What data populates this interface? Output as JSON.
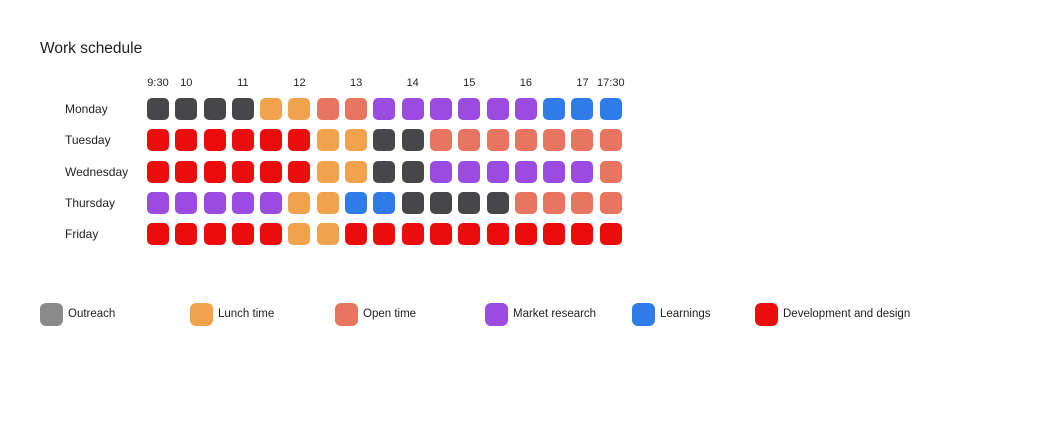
{
  "page": {
    "background": "#ffffff"
  },
  "chart_data": {
    "type": "heatmap",
    "title": "Work schedule",
    "x_axis": {
      "tick_labels": [
        "9:30",
        "10",
        "11",
        "12",
        "13",
        "14",
        "15",
        "16",
        "17",
        "17:30"
      ],
      "tick_slot_index": [
        0,
        1,
        3,
        5,
        7,
        9,
        11,
        13,
        15,
        16
      ],
      "slots_per_row": 17,
      "range": [
        "9:30",
        "17:30"
      ]
    },
    "days": [
      "Monday",
      "Tuesday",
      "Wednesday",
      "Thursday",
      "Friday"
    ],
    "cells": {
      "Monday": [
        "outreach",
        "outreach",
        "outreach",
        "outreach",
        "lunch",
        "lunch",
        "open",
        "open",
        "market",
        "market",
        "market",
        "market",
        "market",
        "market",
        "learnings",
        "learnings",
        "learnings"
      ],
      "Tuesday": [
        "dev",
        "dev",
        "dev",
        "dev",
        "dev",
        "dev",
        "lunch",
        "lunch",
        "outreach",
        "outreach",
        "open",
        "open",
        "open",
        "open",
        "open",
        "open",
        "open"
      ],
      "Wednesday": [
        "dev",
        "dev",
        "dev",
        "dev",
        "dev",
        "dev",
        "lunch",
        "lunch",
        "outreach",
        "outreach",
        "market",
        "market",
        "market",
        "market",
        "market",
        "market",
        "open"
      ],
      "Thursday": [
        "market",
        "market",
        "market",
        "market",
        "market",
        "lunch",
        "lunch",
        "learnings",
        "learnings",
        "outreach",
        "outreach",
        "outreach",
        "outreach",
        "open",
        "open",
        "open",
        "open"
      ],
      "Friday": [
        "dev",
        "dev",
        "dev",
        "dev",
        "dev",
        "lunch",
        "lunch",
        "dev",
        "dev",
        "dev",
        "dev",
        "dev",
        "dev",
        "dev",
        "dev",
        "dev",
        "dev"
      ]
    },
    "activities": {
      "outreach": {
        "label": "Outreach",
        "cell_color": "#47474a",
        "legend_color": "#8a8a8a"
      },
      "lunch": {
        "label": "Lunch time",
        "cell_color": "#f0a24d",
        "legend_color": "#f0a24d"
      },
      "open": {
        "label": "Open time",
        "cell_color": "#e87560",
        "legend_color": "#e87560"
      },
      "market": {
        "label": "Market research",
        "cell_color": "#9b4be0",
        "legend_color": "#9b4be0"
      },
      "learnings": {
        "label": "Learnings",
        "cell_color": "#2f7ce9",
        "legend_color": "#2f7ce9"
      },
      "dev": {
        "label": "Development and design",
        "cell_color": "#ea0d0c",
        "legend_color": "#ea0d0c"
      }
    },
    "legend_order": [
      "outreach",
      "lunch",
      "open",
      "market",
      "learnings",
      "dev"
    ],
    "legend_position": "bottom",
    "text_color": "#1f1f1f"
  }
}
